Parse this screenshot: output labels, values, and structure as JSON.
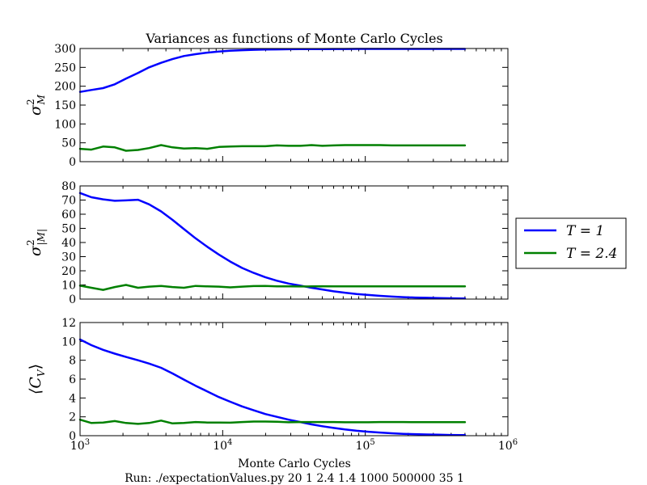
{
  "chart_data": {
    "type": "line",
    "title": "Variances as functions of Monte Carlo Cycles",
    "xlabel": "Monte Carlo Cycles",
    "footer": "Run: ./expectationValues.py 20 1 2.4 1.4 1000 500000 35 1",
    "xscale": "log",
    "xlim": [
      1000,
      1000000
    ],
    "x_ticks": [
      {
        "value": 1000,
        "mant": "10",
        "exp": "3"
      },
      {
        "value": 10000,
        "mant": "10",
        "exp": "4"
      },
      {
        "value": 100000,
        "mant": "10",
        "exp": "5"
      },
      {
        "value": 1000000,
        "mant": "10",
        "exp": "6"
      }
    ],
    "legend": {
      "placement": "right",
      "entries": [
        {
          "label": "T = 1",
          "color": "#0000ff"
        },
        {
          "label": "T = 2.4",
          "color": "#008000"
        }
      ]
    },
    "x": [
      1000,
      1200,
      1450,
      1750,
      2100,
      2550,
      3050,
      3700,
      4450,
      5350,
      6450,
      7800,
      9400,
      11300,
      13700,
      16500,
      19900,
      24000,
      29000,
      35000,
      42000,
      50000,
      60000,
      72000,
      87000,
      105000,
      127000,
      153000,
      185000,
      223000,
      269000,
      325000,
      392000,
      473000,
      500000
    ],
    "panels": [
      {
        "ylabel_base": "σ",
        "ylabel_sup": "2",
        "ylabel_sub": "M",
        "ylim": [
          0,
          300
        ],
        "yticks": [
          "0",
          "50",
          "100",
          "150",
          "200",
          "250",
          "300"
        ],
        "series": [
          {
            "name": "T = 1",
            "color": "#0000ff",
            "values": [
              185,
              190,
              195,
              205,
              220,
              235,
              250,
              262,
              272,
              280,
              285,
              289,
              292,
              294,
              295.5,
              296.5,
              297.2,
              297.7,
              298,
              298.3,
              298.5,
              298.6,
              298.7,
              298.8,
              298.9,
              299,
              299,
              299,
              299,
              299,
              299,
              299,
              299,
              299,
              299
            ]
          },
          {
            "name": "T = 2.4",
            "color": "#008000",
            "values": [
              34,
              32,
              40,
              38,
              29,
              31,
              36,
              44,
              38,
              35,
              36,
              34,
              39,
              40,
              41,
              41,
              41,
              43,
              42,
              42,
              44,
              42,
              43,
              44,
              44,
              44,
              44,
              43,
              43,
              43,
              43,
              43,
              43,
              43,
              43
            ]
          }
        ]
      },
      {
        "ylabel_base": "σ",
        "ylabel_sup": "2",
        "ylabel_sub": "|M|",
        "ylim": [
          0,
          80
        ],
        "yticks": [
          "0",
          "10",
          "20",
          "30",
          "40",
          "50",
          "60",
          "70",
          "80"
        ],
        "series": [
          {
            "name": "T = 1",
            "color": "#0000ff",
            "values": [
              75,
              72,
              70.5,
              69.5,
              69.8,
              70.2,
              67,
              62,
              56,
              49.5,
              43,
              37,
              31.5,
              26.5,
              22,
              18.5,
              15.5,
              13,
              11,
              9.5,
              8,
              6.8,
              5.5,
              4.5,
              3.6,
              2.9,
              2.3,
              1.8,
              1.4,
              1.1,
              0.9,
              0.7,
              0.55,
              0.45,
              0.4
            ]
          },
          {
            "name": "T = 2.4",
            "color": "#008000",
            "values": [
              9.5,
              8,
              6.5,
              8.5,
              10,
              8,
              8.8,
              9.3,
              8.5,
              8,
              9.3,
              9,
              8.8,
              8.3,
              8.8,
              9.2,
              9.3,
              9,
              9,
              8.9,
              9,
              9.1,
              9,
              9,
              9,
              9,
              9,
              9,
              9,
              9,
              9,
              9,
              9,
              9,
              9
            ]
          }
        ]
      },
      {
        "ylabel_base": "⟨C",
        "ylabel_sub": "V",
        "ylabel_end": "⟩",
        "ylim": [
          0,
          12
        ],
        "yticks": [
          "0",
          "2",
          "4",
          "6",
          "8",
          "10",
          "12"
        ],
        "series": [
          {
            "name": "T = 1",
            "color": "#0000ff",
            "values": [
              10.2,
              9.6,
              9.1,
              8.7,
              8.35,
              8,
              7.65,
              7.2,
              6.6,
              5.95,
              5.3,
              4.7,
              4.1,
              3.6,
              3.1,
              2.7,
              2.3,
              2,
              1.7,
              1.45,
              1.2,
              1,
              0.82,
              0.66,
              0.52,
              0.42,
              0.33,
              0.26,
              0.2,
              0.16,
              0.13,
              0.1,
              0.08,
              0.07,
              0.06
            ]
          },
          {
            "name": "T = 2.4",
            "color": "#008000",
            "values": [
              1.7,
              1.35,
              1.4,
              1.55,
              1.35,
              1.25,
              1.35,
              1.6,
              1.3,
              1.35,
              1.45,
              1.4,
              1.4,
              1.38,
              1.45,
              1.5,
              1.5,
              1.48,
              1.42,
              1.45,
              1.45,
              1.45,
              1.45,
              1.42,
              1.42,
              1.42,
              1.45,
              1.45,
              1.45,
              1.43,
              1.43,
              1.43,
              1.43,
              1.43,
              1.43
            ]
          }
        ]
      }
    ]
  }
}
